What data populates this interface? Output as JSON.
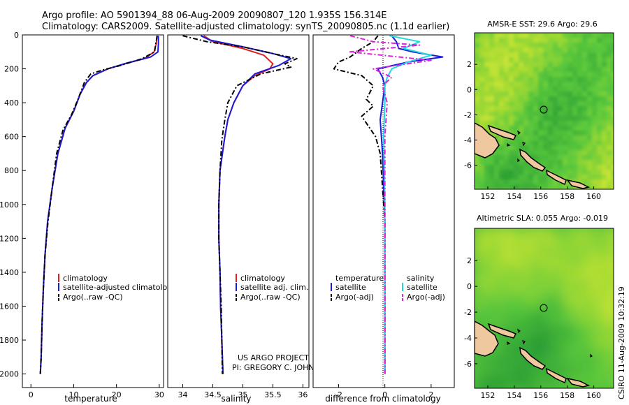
{
  "header": {
    "line1": "Argo profile: AO 5901394_88 06-Aug-2009 20090807_120 1.935S 156.314E",
    "line2": "Climatology: CARS2009. Satellite-adjusted climatology: synTS_20090805.nc (1.1d earlier)"
  },
  "colors": {
    "climatology": "#e02020",
    "satellite": "#1a1adb",
    "argo": "#000000",
    "temp_diff_sat": "#1a1adb",
    "sal_diff_sat": "#22d8e0",
    "sal_diff_argo": "#dd22dd",
    "land": "#f0c8a0"
  },
  "credit": {
    "line1": "US ARGO PROJECT",
    "line2": "PI: GREGORY C. JOHNSON",
    "stamp": "CSIRO 11-Aug-2009 10:32:19"
  },
  "chart_data": [
    {
      "type": "line",
      "id": "temperature",
      "xlabel": "temperature",
      "ylabel": "",
      "xlim": [
        -2,
        31
      ],
      "ylim": [
        2080,
        0
      ],
      "xticks": [
        0,
        10,
        20,
        30
      ],
      "yticks": [
        0,
        200,
        400,
        600,
        800,
        1000,
        1200,
        1400,
        1600,
        1800,
        2000
      ],
      "legend": [
        "climatology",
        "satellite-adjusted climatology",
        "Argo(..raw -QC)"
      ],
      "series": [
        {
          "name": "climatology",
          "style": "solid",
          "color": "#e02020",
          "x": [
            29.5,
            29.3,
            28.8,
            26.5,
            22.0,
            18.0,
            14.5,
            13.0,
            11.5,
            10.0,
            8.0,
            6.3,
            5.0,
            3.9,
            3.3,
            2.9,
            2.6,
            2.4,
            2.2
          ],
          "y": [
            5,
            50,
            100,
            140,
            170,
            200,
            240,
            280,
            350,
            450,
            550,
            700,
            900,
            1100,
            1300,
            1500,
            1700,
            1900,
            2000
          ]
        },
        {
          "name": "satellite-adjusted climatology",
          "style": "solid",
          "color": "#1a1adb",
          "x": [
            29.8,
            29.8,
            29.7,
            28.0,
            22.5,
            18.0,
            14.5,
            13.0,
            11.5,
            10.0,
            8.0,
            6.3,
            5.0,
            3.9,
            3.3,
            2.9,
            2.6,
            2.4,
            2.2
          ],
          "y": [
            5,
            50,
            100,
            130,
            165,
            200,
            240,
            280,
            350,
            450,
            550,
            700,
            900,
            1100,
            1300,
            1500,
            1700,
            1900,
            2000
          ]
        },
        {
          "name": "Argo(..raw -QC)",
          "style": "dash",
          "color": "#000000",
          "x": [
            29.5,
            29.2,
            28.9,
            26.0,
            21.0,
            17.0,
            14.0,
            12.5,
            11.0,
            9.5,
            7.5,
            6.0,
            5.0,
            4.0,
            3.3,
            2.9,
            2.6,
            2.4,
            2.2
          ],
          "y": [
            5,
            50,
            100,
            140,
            180,
            205,
            230,
            280,
            380,
            470,
            560,
            700,
            900,
            1100,
            1300,
            1500,
            1700,
            1900,
            2000
          ]
        }
      ]
    },
    {
      "type": "line",
      "id": "salinity",
      "xlabel": "salinity",
      "ylabel": "",
      "xlim": [
        33.75,
        36.1
      ],
      "ylim": [
        2080,
        0
      ],
      "xticks": [
        34,
        34.5,
        35,
        35.5,
        36
      ],
      "legend": [
        "climatology",
        "satellite adj. clim.",
        "Argo(..raw -QC)"
      ],
      "series": [
        {
          "name": "climatology",
          "style": "solid",
          "color": "#e02020",
          "x": [
            34.35,
            34.5,
            35.0,
            35.35,
            35.5,
            35.45,
            35.2,
            35.0,
            34.85,
            34.75,
            34.7,
            34.62,
            34.6,
            34.6,
            34.62,
            34.63,
            34.65,
            34.66,
            34.67
          ],
          "y": [
            5,
            40,
            80,
            120,
            170,
            200,
            240,
            300,
            400,
            500,
            600,
            800,
            1000,
            1200,
            1400,
            1600,
            1800,
            1900,
            2000
          ]
        },
        {
          "name": "satellite adj. clim.",
          "style": "solid",
          "color": "#1a1adb",
          "x": [
            34.3,
            34.45,
            35.0,
            35.5,
            35.8,
            35.6,
            35.2,
            35.0,
            34.85,
            34.75,
            34.7,
            34.62,
            34.6,
            34.6,
            34.62,
            34.63,
            34.65,
            34.66,
            34.67
          ],
          "y": [
            5,
            30,
            70,
            110,
            140,
            180,
            230,
            300,
            400,
            500,
            600,
            800,
            1000,
            1200,
            1400,
            1600,
            1800,
            1900,
            2000
          ]
        },
        {
          "name": "Argo(..raw -QC)",
          "style": "dash",
          "color": "#000000",
          "x": [
            34.0,
            34.4,
            35.0,
            35.5,
            35.9,
            35.7,
            35.8,
            35.3,
            34.9,
            34.75,
            34.7,
            34.65,
            34.62,
            34.6,
            34.6,
            34.62,
            34.64,
            34.65,
            34.66
          ],
          "y": [
            5,
            40,
            70,
            110,
            140,
            170,
            190,
            230,
            300,
            400,
            500,
            620,
            800,
            1000,
            1200,
            1400,
            1600,
            1800,
            2000
          ]
        }
      ]
    },
    {
      "type": "line",
      "id": "difference",
      "xlabel": "difference from climatology",
      "ylabel": "",
      "xlim": [
        -3.1,
        3.0
      ],
      "ylim": [
        2080,
        0
      ],
      "xticks": [
        -2,
        0,
        2
      ],
      "legend_groups": [
        {
          "title": "temperature",
          "items": [
            "satellite",
            "Argo(-adj)"
          ]
        },
        {
          "title": "salinity",
          "items": [
            "satellite",
            "Argo(-adj)"
          ]
        }
      ],
      "series": [
        {
          "name": "temperature satellite",
          "style": "solid",
          "color": "#1a1adb",
          "x": [
            0.3,
            0.5,
            0.6,
            1.2,
            2.5,
            1.0,
            -0.3,
            -0.1,
            0.0,
            -0.1,
            -0.2,
            -0.15,
            -0.1,
            -0.05,
            0.0,
            0.0,
            0.0,
            0.0,
            0.0
          ],
          "y": [
            5,
            40,
            80,
            100,
            130,
            160,
            200,
            250,
            300,
            400,
            500,
            600,
            700,
            900,
            1100,
            1300,
            1500,
            1700,
            2000
          ]
        },
        {
          "name": "temperature Argo(-adj)",
          "style": "dash",
          "color": "#000000",
          "x": [
            -0.3,
            -0.5,
            -1.0,
            -1.5,
            -2.0,
            -2.2,
            -1.0,
            -0.5,
            -0.8,
            -0.5,
            -1.0,
            -0.8,
            -0.4,
            -0.2,
            -0.1,
            0.0,
            0.0,
            0.0,
            0.0
          ],
          "y": [
            5,
            40,
            80,
            130,
            160,
            200,
            240,
            300,
            380,
            420,
            480,
            520,
            600,
            700,
            900,
            1100,
            1300,
            1600,
            2000
          ]
        },
        {
          "name": "salinity satellite",
          "style": "solid",
          "color": "#22d8e0",
          "x": [
            0.2,
            1.5,
            0.8,
            2.0,
            1.0,
            0.3,
            0.1,
            0.0,
            0.0,
            -0.05,
            0.0,
            0.0,
            0.0
          ],
          "y": [
            5,
            40,
            80,
            120,
            160,
            200,
            250,
            300,
            400,
            600,
            1000,
            1500,
            2000
          ]
        },
        {
          "name": "salinity Argo(-adj)",
          "style": "dash",
          "color": "#dd22dd",
          "x": [
            -1.5,
            -0.5,
            1.5,
            -1.5,
            2.0,
            -0.5,
            0.3,
            -0.1,
            0.1,
            0.0,
            0.0,
            0.0,
            0.0
          ],
          "y": [
            5,
            40,
            60,
            100,
            150,
            200,
            250,
            300,
            400,
            600,
            1000,
            1500,
            2000
          ]
        }
      ]
    },
    {
      "type": "heatmap",
      "id": "sst_map",
      "title": "AMSR-E SST: 29.6 Argo: 29.6",
      "xlim": [
        151,
        161.5
      ],
      "ylim": [
        -7.9,
        4.5
      ],
      "xticks": [
        152,
        154,
        156,
        158,
        160
      ],
      "yticks": [
        2,
        0,
        -2,
        -4,
        -6
      ],
      "marker": {
        "lon": 156.314,
        "lat": -1.935
      }
    },
    {
      "type": "heatmap",
      "id": "sla_map",
      "title": "Altimetric SLA: 0.055 Argo: -0.019",
      "xlim": [
        151,
        161.5
      ],
      "ylim": [
        -7.9,
        4.5
      ],
      "xticks": [
        152,
        154,
        156,
        158,
        160
      ],
      "yticks": [
        2,
        0,
        -2,
        -4,
        -6
      ],
      "marker": {
        "lon": 156.314,
        "lat": -1.935
      }
    }
  ]
}
